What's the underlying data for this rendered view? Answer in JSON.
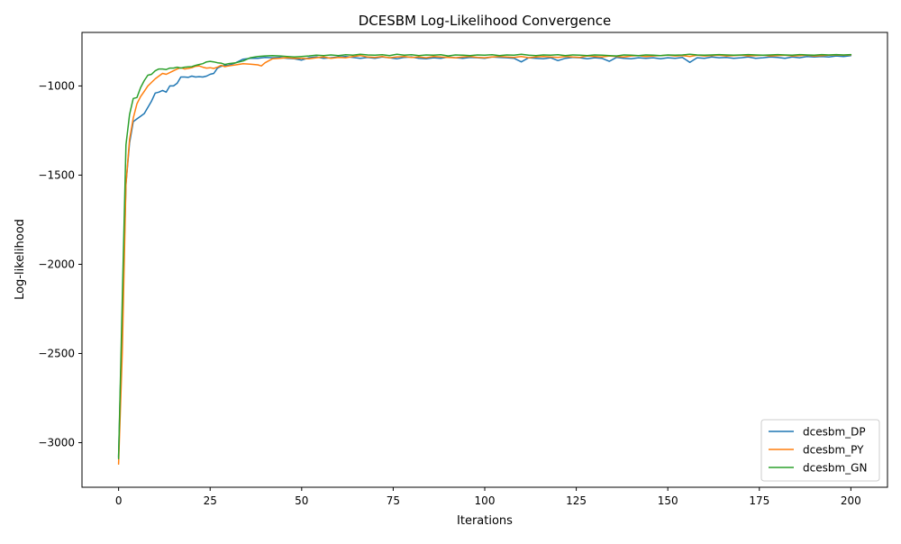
{
  "chart_data": {
    "type": "line",
    "title": "DCESBM Log-Likelihood Convergence",
    "xlabel": "Iterations",
    "ylabel": "Log-likelihood",
    "xlim": [
      -10,
      210
    ],
    "ylim": [
      -3250,
      -700
    ],
    "xticks": [
      0,
      25,
      50,
      75,
      100,
      125,
      150,
      175,
      200
    ],
    "yticks": [
      -3000,
      -2500,
      -2000,
      -1500,
      -1000
    ],
    "xtick_labels": [
      "0",
      "25",
      "50",
      "75",
      "100",
      "125",
      "150",
      "175",
      "200"
    ],
    "ytick_labels": [
      "−3000",
      "−2500",
      "−2000",
      "−1500",
      "−1000"
    ],
    "legend_position": "lower-right",
    "grid": false,
    "series": [
      {
        "name": "dcesbm_DP",
        "color": "#1f77b4",
        "x": [
          0,
          1,
          2,
          3,
          4,
          5,
          6,
          7,
          8,
          9,
          10,
          11,
          12,
          13,
          14,
          15,
          16,
          17,
          18,
          19,
          20,
          21,
          22,
          23,
          24,
          25,
          26,
          27,
          28,
          29,
          30,
          32,
          34,
          36,
          38,
          40,
          42,
          44,
          46,
          48,
          50,
          52,
          54,
          56,
          58,
          60,
          62,
          64,
          66,
          68,
          70,
          72,
          74,
          76,
          78,
          80,
          82,
          84,
          86,
          88,
          90,
          92,
          94,
          96,
          98,
          100,
          102,
          104,
          106,
          108,
          110,
          112,
          114,
          116,
          118,
          120,
          122,
          124,
          126,
          128,
          130,
          132,
          134,
          136,
          138,
          140,
          142,
          144,
          146,
          148,
          150,
          152,
          154,
          156,
          158,
          160,
          162,
          164,
          166,
          168,
          170,
          172,
          174,
          176,
          178,
          180,
          182,
          184,
          186,
          188,
          190,
          192,
          194,
          196,
          198,
          200
        ],
        "values": [
          -3080,
          -2300,
          -1550,
          -1320,
          -1200,
          -1185,
          -1170,
          -1155,
          -1120,
          -1085,
          -1040,
          -1035,
          -1025,
          -1035,
          -1000,
          -1000,
          -985,
          -950,
          -950,
          -952,
          -945,
          -950,
          -948,
          -950,
          -945,
          -935,
          -930,
          -900,
          -890,
          -885,
          -885,
          -870,
          -850,
          -845,
          -845,
          -840,
          -842,
          -840,
          -845,
          -848,
          -855,
          -842,
          -838,
          -845,
          -842,
          -838,
          -835,
          -840,
          -845,
          -840,
          -845,
          -838,
          -842,
          -848,
          -840,
          -838,
          -845,
          -848,
          -842,
          -845,
          -838,
          -842,
          -845,
          -840,
          -842,
          -845,
          -838,
          -840,
          -842,
          -845,
          -865,
          -842,
          -845,
          -848,
          -842,
          -858,
          -845,
          -840,
          -842,
          -848,
          -842,
          -845,
          -862,
          -840,
          -845,
          -848,
          -842,
          -845,
          -842,
          -848,
          -842,
          -845,
          -840,
          -868,
          -842,
          -845,
          -838,
          -842,
          -840,
          -845,
          -842,
          -838,
          -845,
          -842,
          -838,
          -840,
          -845,
          -838,
          -842,
          -835,
          -838,
          -835,
          -838,
          -832,
          -835,
          -830
        ]
      },
      {
        "name": "dcesbm_PY",
        "color": "#ff7f0e",
        "x": [
          0,
          1,
          2,
          3,
          4,
          5,
          6,
          7,
          8,
          9,
          10,
          11,
          12,
          13,
          14,
          15,
          16,
          17,
          18,
          19,
          20,
          21,
          22,
          23,
          24,
          25,
          26,
          27,
          28,
          29,
          30,
          32,
          34,
          36,
          38,
          39,
          40,
          42,
          44,
          46,
          48,
          50,
          52,
          54,
          56,
          58,
          60,
          62,
          64,
          66,
          68,
          70,
          72,
          74,
          76,
          78,
          80,
          82,
          84,
          86,
          88,
          90,
          92,
          94,
          96,
          98,
          100,
          102,
          104,
          106,
          108,
          110,
          112,
          114,
          116,
          118,
          120,
          122,
          124,
          126,
          128,
          130,
          132,
          134,
          136,
          138,
          140,
          142,
          144,
          146,
          148,
          150,
          152,
          154,
          156,
          158,
          160,
          162,
          164,
          166,
          168,
          170,
          172,
          174,
          176,
          178,
          180,
          182,
          184,
          186,
          188,
          190,
          192,
          194,
          196,
          198,
          200
        ],
        "values": [
          -3120,
          -2500,
          -1550,
          -1300,
          -1180,
          -1100,
          -1060,
          -1030,
          -1000,
          -980,
          -960,
          -945,
          -930,
          -935,
          -925,
          -915,
          -905,
          -898,
          -905,
          -902,
          -898,
          -890,
          -888,
          -895,
          -900,
          -898,
          -902,
          -895,
          -885,
          -892,
          -888,
          -882,
          -875,
          -878,
          -882,
          -888,
          -870,
          -848,
          -845,
          -842,
          -845,
          -845,
          -848,
          -842,
          -838,
          -845,
          -840,
          -842,
          -835,
          -830,
          -838,
          -840,
          -835,
          -842,
          -838,
          -835,
          -840,
          -838,
          -842,
          -835,
          -838,
          -840,
          -842,
          -838,
          -835,
          -840,
          -842,
          -838,
          -835,
          -838,
          -840,
          -835,
          -842,
          -838,
          -835,
          -838,
          -840,
          -835,
          -838,
          -840,
          -832,
          -835,
          -838,
          -832,
          -835,
          -838,
          -832,
          -830,
          -835,
          -832,
          -830,
          -828,
          -832,
          -830,
          -835,
          -828,
          -832,
          -830,
          -828,
          -832,
          -830,
          -828,
          -832,
          -830,
          -828,
          -832,
          -830,
          -828,
          -832,
          -830,
          -828,
          -832,
          -830,
          -828,
          -826,
          -828,
          -826
        ]
      },
      {
        "name": "dcesbm_GN",
        "color": "#2ca02c",
        "x": [
          0,
          1,
          2,
          3,
          4,
          5,
          6,
          7,
          8,
          9,
          10,
          11,
          12,
          13,
          14,
          15,
          16,
          17,
          18,
          19,
          20,
          21,
          22,
          23,
          24,
          25,
          26,
          27,
          28,
          29,
          30,
          32,
          34,
          36,
          38,
          40,
          42,
          44,
          46,
          48,
          50,
          52,
          54,
          56,
          58,
          60,
          62,
          64,
          66,
          68,
          70,
          72,
          74,
          76,
          78,
          80,
          82,
          84,
          86,
          88,
          90,
          92,
          94,
          96,
          98,
          100,
          102,
          104,
          106,
          108,
          110,
          112,
          114,
          116,
          118,
          120,
          122,
          124,
          126,
          128,
          130,
          132,
          134,
          136,
          138,
          140,
          142,
          144,
          146,
          148,
          150,
          152,
          154,
          156,
          158,
          160,
          162,
          164,
          166,
          168,
          170,
          172,
          174,
          176,
          178,
          180,
          182,
          184,
          186,
          188,
          190,
          192,
          194,
          196,
          198,
          200
        ],
        "values": [
          -3090,
          -2200,
          -1330,
          -1160,
          -1070,
          -1065,
          -1010,
          -970,
          -940,
          -935,
          -915,
          -905,
          -905,
          -908,
          -900,
          -900,
          -895,
          -900,
          -895,
          -893,
          -892,
          -885,
          -880,
          -875,
          -865,
          -862,
          -865,
          -870,
          -872,
          -880,
          -875,
          -870,
          -860,
          -842,
          -835,
          -832,
          -830,
          -832,
          -835,
          -838,
          -835,
          -832,
          -828,
          -830,
          -826,
          -830,
          -825,
          -828,
          -822,
          -826,
          -828,
          -825,
          -830,
          -822,
          -828,
          -825,
          -830,
          -826,
          -828,
          -825,
          -832,
          -826,
          -828,
          -830,
          -826,
          -828,
          -825,
          -830,
          -826,
          -828,
          -822,
          -828,
          -830,
          -826,
          -828,
          -825,
          -830,
          -826,
          -828,
          -830,
          -826,
          -828,
          -830,
          -832,
          -826,
          -828,
          -830,
          -826,
          -828,
          -830,
          -826,
          -828,
          -826,
          -822,
          -826,
          -828,
          -826,
          -824,
          -826,
          -828,
          -826,
          -824,
          -826,
          -828,
          -826,
          -824,
          -826,
          -828,
          -824,
          -826,
          -828,
          -824,
          -826,
          -824,
          -826,
          -824
        ]
      }
    ]
  }
}
